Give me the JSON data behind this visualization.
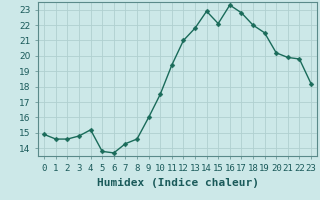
{
  "title": "",
  "xlabel": "Humidex (Indice chaleur)",
  "x": [
    0,
    1,
    2,
    3,
    4,
    5,
    6,
    7,
    8,
    9,
    10,
    11,
    12,
    13,
    14,
    15,
    16,
    17,
    18,
    19,
    20,
    21,
    22,
    23
  ],
  "y": [
    14.9,
    14.6,
    14.6,
    14.8,
    15.2,
    13.8,
    13.7,
    14.3,
    14.6,
    16.0,
    17.5,
    19.4,
    21.0,
    21.8,
    22.9,
    22.1,
    23.3,
    22.8,
    22.0,
    21.5,
    20.2,
    19.9,
    19.8,
    18.2
  ],
  "line_color": "#1a6b5a",
  "marker": "D",
  "marker_size": 2.5,
  "line_width": 1.0,
  "background_color": "#cce8e8",
  "grid_color": "#b0d0d0",
  "ylim": [
    13.5,
    23.5
  ],
  "yticks": [
    14,
    15,
    16,
    17,
    18,
    19,
    20,
    21,
    22,
    23
  ],
  "xlim": [
    -0.5,
    23.5
  ],
  "xtick_labels": [
    "0",
    "1",
    "2",
    "3",
    "4",
    "5",
    "6",
    "7",
    "8",
    "9",
    "10",
    "11",
    "12",
    "13",
    "14",
    "15",
    "16",
    "17",
    "18",
    "19",
    "20",
    "21",
    "22",
    "23"
  ],
  "xlabel_fontsize": 8,
  "tick_fontsize": 6.5,
  "spine_color": "#5a8a8a"
}
